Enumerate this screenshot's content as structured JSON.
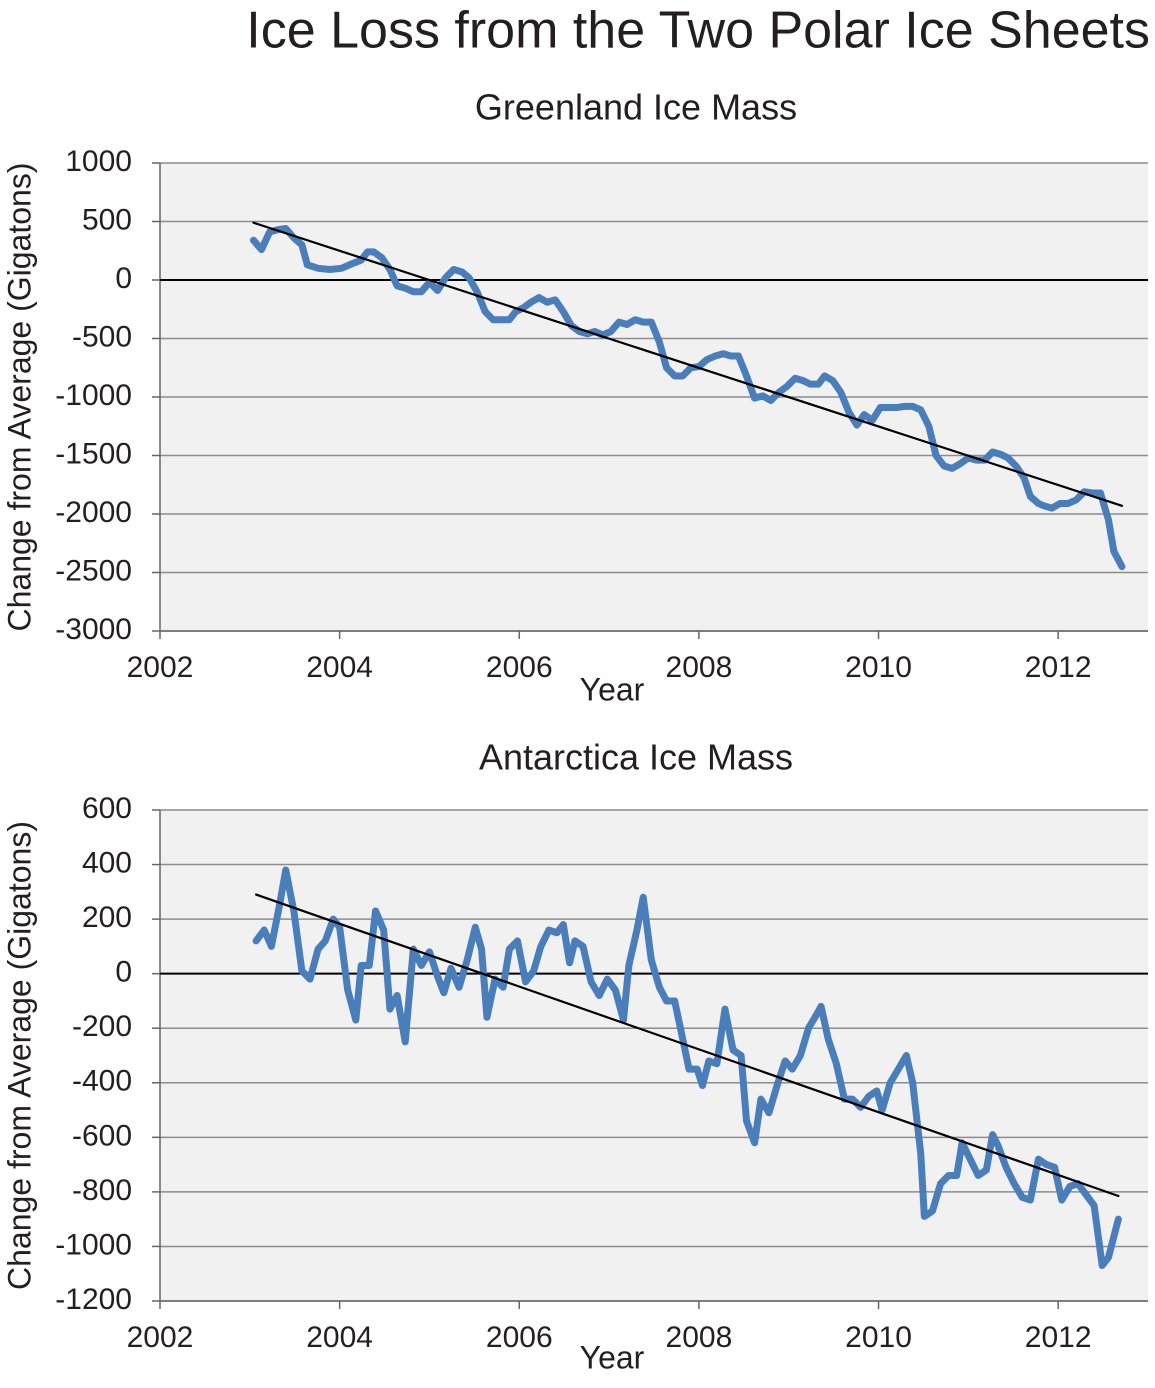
{
  "title": "Ice Loss from the Two Polar Ice Sheets",
  "chart_data": [
    {
      "type": "line",
      "title": "Greenland Ice Mass",
      "xlabel": "Year",
      "ylabel": "Change from Average (Gigatons)",
      "xlim": [
        2002,
        2013
      ],
      "xticks": [
        2002,
        2004,
        2006,
        2008,
        2010,
        2012
      ],
      "ylim": [
        -3000,
        1000
      ],
      "yticks": [
        -3000,
        -2500,
        -2000,
        -1500,
        -1000,
        -500,
        0,
        500,
        1000
      ],
      "grid": true,
      "series": [
        {
          "color": "#4a7ebb",
          "x": [
            2003.04,
            2003.13,
            2003.22,
            2003.31,
            2003.4,
            2003.49,
            2003.58,
            2003.64,
            2003.76,
            2003.89,
            2004.02,
            2004.11,
            2004.24,
            2004.31,
            2004.38,
            2004.47,
            2004.56,
            2004.64,
            2004.73,
            2004.82,
            2004.91,
            2005.0,
            2005.09,
            2005.18,
            2005.27,
            2005.36,
            2005.44,
            2005.53,
            2005.62,
            2005.71,
            2005.8,
            2005.89,
            2005.96,
            2006.04,
            2006.13,
            2006.22,
            2006.31,
            2006.4,
            2006.49,
            2006.58,
            2006.67,
            2006.76,
            2006.84,
            2006.93,
            2007.02,
            2007.11,
            2007.2,
            2007.29,
            2007.38,
            2007.47,
            2007.56,
            2007.64,
            2007.73,
            2007.82,
            2007.91,
            2008.0,
            2008.09,
            2008.18,
            2008.27,
            2008.36,
            2008.44,
            2008.53,
            2008.62,
            2008.71,
            2008.8,
            2008.89,
            2008.98,
            2009.07,
            2009.16,
            2009.24,
            2009.33,
            2009.4,
            2009.49,
            2009.58,
            2009.67,
            2009.76,
            2009.84,
            2009.93,
            2010.02,
            2010.11,
            2010.2,
            2010.29,
            2010.38,
            2010.47,
            2010.56,
            2010.64,
            2010.73,
            2010.82,
            2010.91,
            2011.0,
            2011.09,
            2011.18,
            2011.27,
            2011.36,
            2011.44,
            2011.53,
            2011.62,
            2011.69,
            2011.78,
            2011.84,
            2011.93,
            2012.02,
            2012.11,
            2012.2,
            2012.29,
            2012.38,
            2012.47,
            2012.56,
            2012.62,
            2012.71
          ],
          "values": [
            340,
            260,
            410,
            430,
            440,
            360,
            300,
            130,
            100,
            90,
            100,
            130,
            170,
            240,
            240,
            190,
            90,
            -50,
            -70,
            -100,
            -100,
            -20,
            -90,
            20,
            90,
            70,
            20,
            -100,
            -270,
            -340,
            -340,
            -340,
            -270,
            -240,
            -190,
            -150,
            -190,
            -170,
            -270,
            -390,
            -440,
            -460,
            -440,
            -470,
            -440,
            -360,
            -380,
            -340,
            -360,
            -360,
            -530,
            -750,
            -820,
            -820,
            -750,
            -740,
            -680,
            -650,
            -630,
            -650,
            -650,
            -820,
            -1010,
            -990,
            -1030,
            -960,
            -910,
            -840,
            -860,
            -890,
            -890,
            -820,
            -860,
            -960,
            -1130,
            -1240,
            -1150,
            -1200,
            -1090,
            -1090,
            -1090,
            -1080,
            -1080,
            -1110,
            -1250,
            -1500,
            -1590,
            -1610,
            -1570,
            -1520,
            -1540,
            -1540,
            -1470,
            -1490,
            -1520,
            -1590,
            -1690,
            -1850,
            -1910,
            -1930,
            -1950,
            -1910,
            -1910,
            -1880,
            -1810,
            -1820,
            -1820,
            -2050,
            -2320,
            -2450
          ]
        },
        {
          "color": "#000000",
          "x": [
            2003.04,
            2012.71
          ],
          "values": [
            490,
            -1930
          ]
        }
      ]
    },
    {
      "type": "line",
      "title": "Antarctica Ice Mass",
      "xlabel": "Year",
      "ylabel": "Change from Average (Gigatons)",
      "xlim": [
        2002,
        2013
      ],
      "xticks": [
        2002,
        2004,
        2006,
        2008,
        2010,
        2012
      ],
      "ylim": [
        -1200,
        600
      ],
      "yticks": [
        -1200,
        -1000,
        -800,
        -600,
        -400,
        -200,
        0,
        200,
        400,
        600
      ],
      "grid": true,
      "series": [
        {
          "color": "#4a7ebb",
          "x": [
            2003.07,
            2003.16,
            2003.24,
            2003.33,
            2003.4,
            2003.49,
            2003.58,
            2003.67,
            2003.76,
            2003.84,
            2003.93,
            2004.0,
            2004.09,
            2004.18,
            2004.24,
            2004.33,
            2004.4,
            2004.49,
            2004.56,
            2004.64,
            2004.73,
            2004.82,
            2004.91,
            2005.0,
            2005.09,
            2005.16,
            2005.24,
            2005.33,
            2005.42,
            2005.51,
            2005.58,
            2005.64,
            2005.73,
            2005.82,
            2005.89,
            2005.98,
            2006.07,
            2006.16,
            2006.24,
            2006.33,
            2006.42,
            2006.49,
            2006.56,
            2006.62,
            2006.71,
            2006.8,
            2006.89,
            2006.98,
            2007.07,
            2007.16,
            2007.22,
            2007.31,
            2007.38,
            2007.47,
            2007.56,
            2007.64,
            2007.73,
            2007.82,
            2007.89,
            2007.98,
            2008.04,
            2008.11,
            2008.2,
            2008.29,
            2008.38,
            2008.47,
            2008.53,
            2008.62,
            2008.69,
            2008.78,
            2008.87,
            2008.96,
            2009.04,
            2009.13,
            2009.22,
            2009.31,
            2009.36,
            2009.44,
            2009.53,
            2009.62,
            2009.71,
            2009.8,
            2009.89,
            2009.98,
            2010.04,
            2010.13,
            2010.22,
            2010.31,
            2010.38,
            2010.47,
            2010.51,
            2010.6,
            2010.69,
            2010.78,
            2010.87,
            2010.93,
            2011.02,
            2011.11,
            2011.2,
            2011.27,
            2011.33,
            2011.42,
            2011.51,
            2011.6,
            2011.69,
            2011.78,
            2011.87,
            2011.96,
            2012.04,
            2012.13,
            2012.22,
            2012.31,
            2012.4,
            2012.49,
            2012.56,
            2012.67
          ],
          "values": [
            120,
            160,
            100,
            250,
            380,
            230,
            10,
            -20,
            90,
            120,
            200,
            170,
            -60,
            -170,
            30,
            30,
            230,
            160,
            -130,
            -80,
            -250,
            90,
            30,
            80,
            -10,
            -70,
            20,
            -50,
            50,
            170,
            90,
            -160,
            -20,
            -50,
            90,
            120,
            -30,
            10,
            100,
            160,
            150,
            180,
            40,
            120,
            100,
            -30,
            -80,
            -20,
            -60,
            -170,
            30,
            160,
            280,
            50,
            -50,
            -100,
            -100,
            -240,
            -350,
            -350,
            -410,
            -320,
            -330,
            -130,
            -280,
            -300,
            -540,
            -620,
            -460,
            -510,
            -410,
            -320,
            -350,
            -300,
            -200,
            -150,
            -120,
            -240,
            -330,
            -460,
            -460,
            -490,
            -450,
            -430,
            -500,
            -400,
            -350,
            -300,
            -400,
            -660,
            -890,
            -870,
            -770,
            -740,
            -740,
            -620,
            -680,
            -740,
            -720,
            -590,
            -630,
            -710,
            -770,
            -820,
            -830,
            -680,
            -700,
            -710,
            -830,
            -780,
            -770,
            -810,
            -850,
            -1070,
            -1040,
            -900
          ]
        },
        {
          "color": "#000000",
          "x": [
            2003.07,
            2012.67
          ],
          "values": [
            290,
            -815
          ]
        }
      ]
    }
  ]
}
